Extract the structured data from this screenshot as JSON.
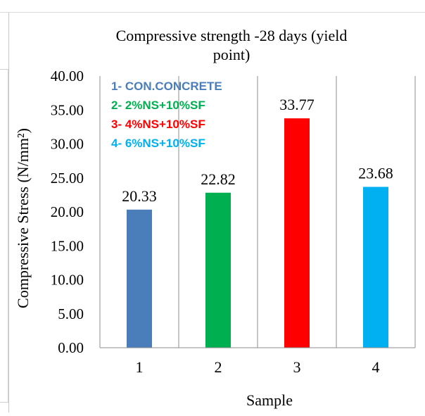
{
  "chart_data": {
    "type": "bar",
    "title": "Compressive strength -28 days (yield point)",
    "title_lines": [
      "Compressive strength -28 days (yield",
      "point)"
    ],
    "xlabel": "Sample",
    "ylabel": "Compressive Stress (N/mm²)",
    "categories": [
      "1",
      "2",
      "3",
      "4"
    ],
    "values": [
      20.33,
      22.82,
      33.77,
      23.68
    ],
    "data_labels": [
      "20.33",
      "22.82",
      "33.77",
      "23.68"
    ],
    "colors": [
      "#4a7ebb",
      "#00b050",
      "#ff0000",
      "#00b0f0"
    ],
    "ylim": [
      0,
      40
    ],
    "yticks": [
      "0.00",
      "5.00",
      "10.00",
      "15.00",
      "20.00",
      "25.00",
      "30.00",
      "35.00",
      "40.00"
    ],
    "grid": "vertical",
    "legend_position": "top-left",
    "legend": [
      {
        "text": "1- CON.CONCRETE",
        "color": "#4a7ebb"
      },
      {
        "text": "2- 2%NS+10%SF",
        "color": "#00b050"
      },
      {
        "text": "3- 4%NS+10%SF",
        "color": "#ff0000"
      },
      {
        "text": "4- 6%NS+10%SF",
        "color": "#00b0f0"
      }
    ]
  }
}
